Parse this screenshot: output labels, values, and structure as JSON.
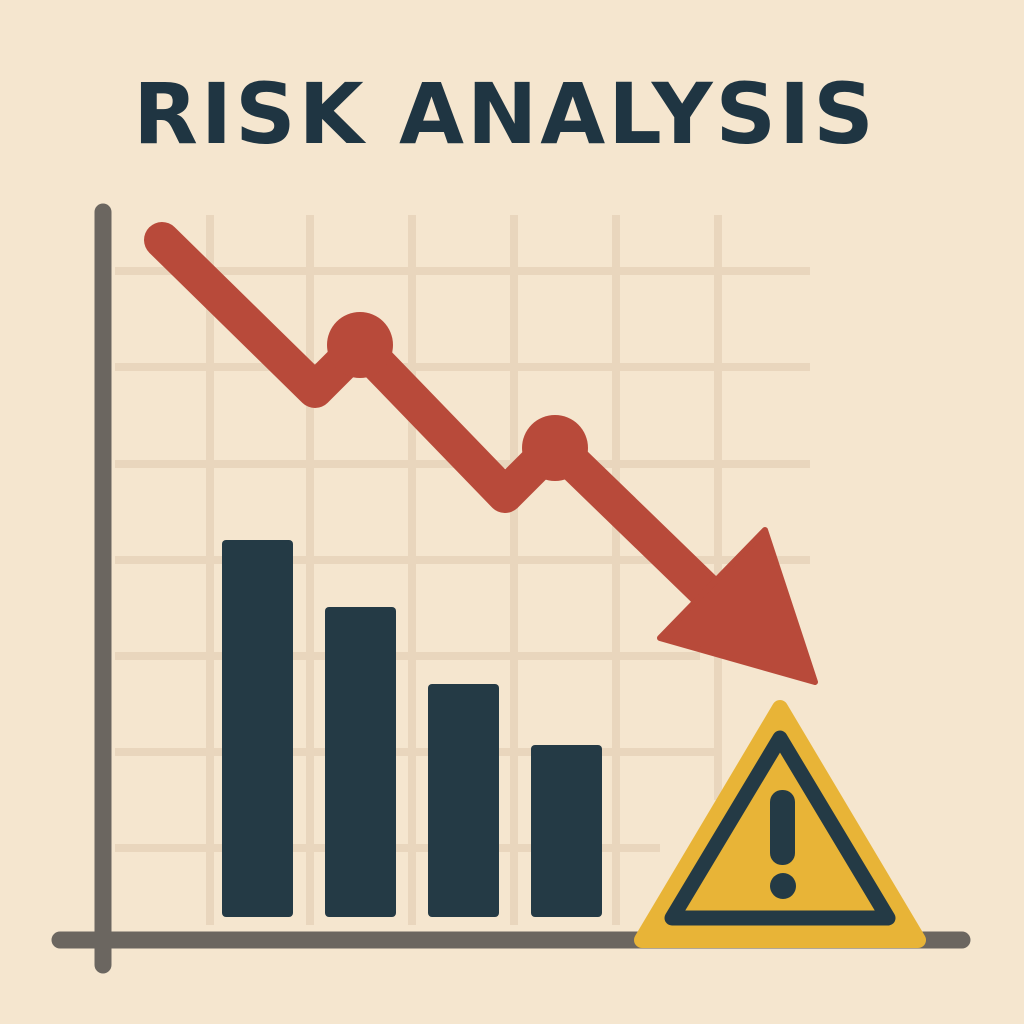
{
  "header": {
    "title": "RISK ANALYSIS"
  }
}
